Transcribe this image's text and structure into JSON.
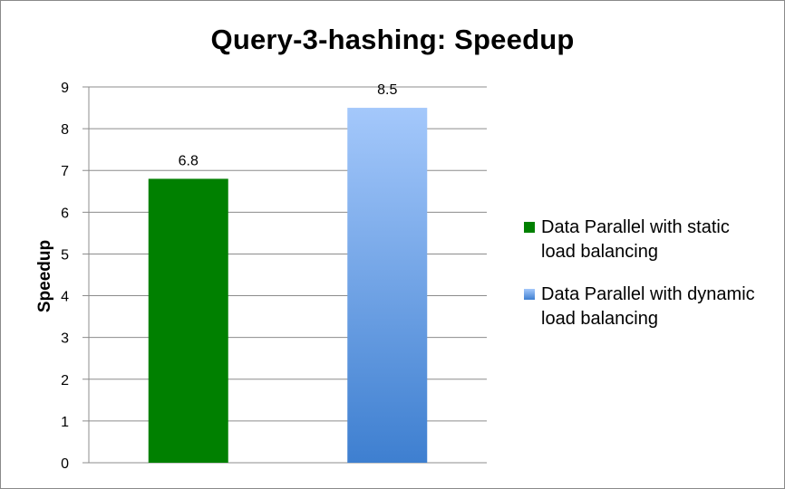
{
  "chart_data": {
    "type": "bar",
    "title": "Query-3-hashing: Speedup",
    "xlabel": "",
    "ylabel": "Speedup",
    "ylim": [
      0,
      9
    ],
    "yticks": [
      0,
      1,
      2,
      3,
      4,
      5,
      6,
      7,
      8,
      9
    ],
    "grid": true,
    "legend_position": "right",
    "series": [
      {
        "name": "Data Parallel with static load balancing",
        "values": [
          6.8
        ],
        "data_label": "6.8",
        "color": "#008000"
      },
      {
        "name": "Data Parallel with dynamic load balancing",
        "values": [
          8.5
        ],
        "data_label": "8.5",
        "color": "#7aaef0",
        "gradient": [
          "#a4c8fb",
          "#3e7fd0"
        ]
      }
    ]
  }
}
